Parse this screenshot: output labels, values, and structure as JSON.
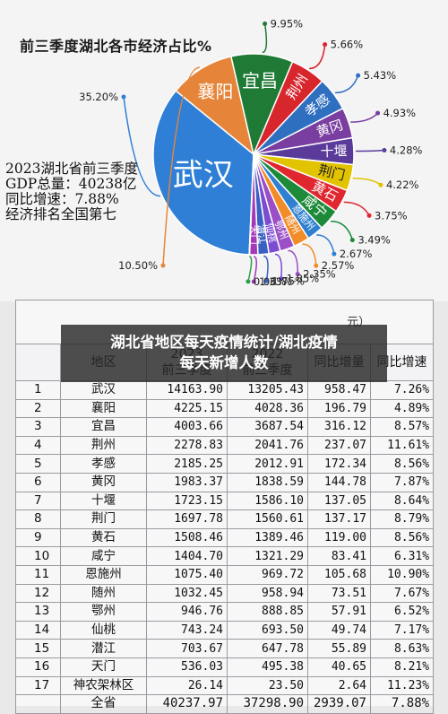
{
  "chart_data": {
    "type": "pie",
    "title": "前三季度湖北各市经济占比%",
    "slices": [
      {
        "label": "武汉",
        "value": 35.2,
        "value_label": "35.20%",
        "color": "#2f7fd6"
      },
      {
        "label": "襄阳",
        "value": 10.5,
        "value_label": "10.50%",
        "color": "#e6853a"
      },
      {
        "label": "宜昌",
        "value": 9.95,
        "value_label": "9.95%",
        "color": "#1f7a35"
      },
      {
        "label": "荆州",
        "value": 5.66,
        "value_label": "5.66%",
        "color": "#d8262d"
      },
      {
        "label": "孝感",
        "value": 5.43,
        "value_label": "5.43%",
        "color": "#2f6fc0"
      },
      {
        "label": "黄冈",
        "value": 4.93,
        "value_label": "4.93%",
        "color": "#7a3ea0"
      },
      {
        "label": "十堰",
        "value": 4.28,
        "value_label": "4.28%",
        "color": "#5a3b9a"
      },
      {
        "label": "荆门",
        "value": 4.22,
        "value_label": "4.22%",
        "color": "#e2c300"
      },
      {
        "label": "黄石",
        "value": 3.75,
        "value_label": "3.75%",
        "color": "#e0262f"
      },
      {
        "label": "咸宁",
        "value": 3.49,
        "value_label": "3.49%",
        "color": "#1d8a3a"
      },
      {
        "label": "恩施州",
        "value": 2.67,
        "value_label": "2.67%",
        "color": "#2f80d0"
      },
      {
        "label": "随州",
        "value": 2.57,
        "value_label": "2.57%",
        "color": "#f28c28"
      },
      {
        "label": "鄂州",
        "value": 2.35,
        "value_label": "2.35%",
        "color": "#9a4fc6"
      },
      {
        "label": "仙桃",
        "value": 1.85,
        "value_label": "1.85%",
        "color": "#7b4bd1"
      },
      {
        "label": "潜江",
        "value": 1.75,
        "value_label": "1.75%",
        "color": "#3b60c4"
      },
      {
        "label": "天门",
        "value": 1.33,
        "value_label": "1.33%",
        "color": "#a33ab8"
      },
      {
        "label": "神农架林区",
        "value": 0.06,
        "value_label": "0.06%",
        "color": "#2f9e4a"
      }
    ]
  },
  "summary": {
    "line1": "2023湖北省前三季度",
    "line2": "GDP总量：40238亿",
    "line3": "同比增速：7.88%",
    "line4": "经济排名全国第七"
  },
  "table": {
    "title_fragment": "元）",
    "headers": [
      "地区",
      "2023\n前三季度",
      "2022\n前三季度",
      "同比增量",
      "同比增速"
    ],
    "rows": [
      [
        "1",
        "武汉",
        "14163.90",
        "13205.43",
        "958.47",
        "7.26%"
      ],
      [
        "2",
        "襄阳",
        "4225.15",
        "4028.36",
        "196.79",
        "4.89%"
      ],
      [
        "3",
        "宜昌",
        "4003.66",
        "3687.54",
        "316.12",
        "8.57%"
      ],
      [
        "4",
        "荆州",
        "2278.83",
        "2041.76",
        "237.07",
        "11.61%"
      ],
      [
        "5",
        "孝感",
        "2185.25",
        "2012.91",
        "172.34",
        "8.56%"
      ],
      [
        "6",
        "黄冈",
        "1983.37",
        "1838.59",
        "144.78",
        "7.87%"
      ],
      [
        "7",
        "十堰",
        "1723.15",
        "1586.10",
        "137.05",
        "8.64%"
      ],
      [
        "8",
        "荆门",
        "1697.78",
        "1560.61",
        "137.17",
        "8.79%"
      ],
      [
        "9",
        "黄石",
        "1508.46",
        "1389.46",
        "119.00",
        "8.56%"
      ],
      [
        "10",
        "咸宁",
        "1404.70",
        "1321.29",
        "83.41",
        "6.31%"
      ],
      [
        "11",
        "恩施州",
        "1075.40",
        "969.72",
        "105.68",
        "10.90%"
      ],
      [
        "12",
        "随州",
        "1032.45",
        "958.94",
        "73.51",
        "7.67%"
      ],
      [
        "13",
        "鄂州",
        "946.76",
        "888.85",
        "57.91",
        "6.52%"
      ],
      [
        "14",
        "仙桃",
        "743.24",
        "693.50",
        "49.74",
        "7.17%"
      ],
      [
        "15",
        "潜江",
        "703.67",
        "647.78",
        "55.89",
        "8.63%"
      ],
      [
        "16",
        "天门",
        "536.03",
        "495.38",
        "40.65",
        "8.21%"
      ],
      [
        "17",
        "神农架林区",
        "26.14",
        "23.50",
        "2.64",
        "11.23%"
      ]
    ],
    "total": [
      "",
      "全省",
      "40237.97",
      "37298.90",
      "2939.07",
      "7.88%"
    ]
  },
  "overlay": {
    "line1": "湖北省地区每天疫情统计/湖北疫情",
    "line2": "每天新增人数"
  }
}
